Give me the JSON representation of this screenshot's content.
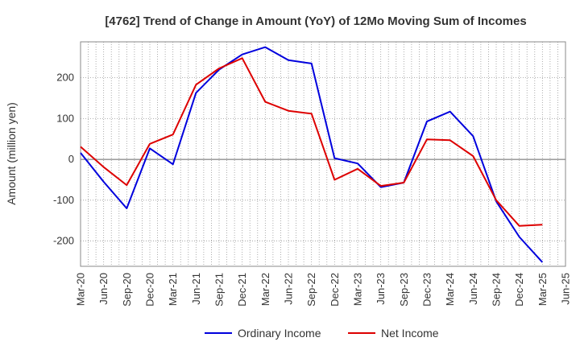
{
  "chart_data": {
    "type": "line",
    "title": "[4762]  Trend of Change in Amount (YoY) of 12Mo Moving Sum of Incomes",
    "xlabel": "",
    "ylabel": "Amount (million yen)",
    "categories": [
      "Mar-20",
      "Jun-20",
      "Sep-20",
      "Dec-20",
      "Mar-21",
      "Jun-21",
      "Sep-21",
      "Dec-21",
      "Mar-22",
      "Jun-22",
      "Sep-22",
      "Dec-22",
      "Mar-23",
      "Jun-23",
      "Sep-23",
      "Dec-23",
      "Mar-24",
      "Jun-24",
      "Sep-24",
      "Dec-24",
      "Mar-25",
      "Jun-25"
    ],
    "ylim": [
      -262,
      288
    ],
    "yticks": [
      -200,
      -100,
      0,
      100,
      200
    ],
    "grid": true,
    "legend_position": "bottom",
    "series": [
      {
        "name": "Ordinary Income",
        "color": "#0000dd",
        "values": [
          16,
          -55,
          -120,
          27,
          -12,
          163,
          220,
          257,
          275,
          243,
          235,
          3,
          -10,
          -68,
          -57,
          93,
          117,
          57,
          -103,
          -190,
          -252,
          null
        ]
      },
      {
        "name": "Net Income",
        "color": "#dd0000",
        "values": [
          31,
          -19,
          -63,
          38,
          61,
          183,
          223,
          248,
          141,
          119,
          112,
          -50,
          -23,
          -65,
          -57,
          49,
          47,
          8,
          -100,
          -163,
          -160,
          null
        ]
      }
    ]
  }
}
